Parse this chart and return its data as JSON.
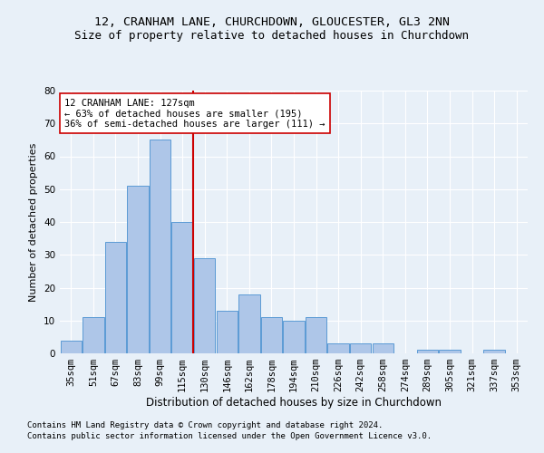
{
  "title1": "12, CRANHAM LANE, CHURCHDOWN, GLOUCESTER, GL3 2NN",
  "title2": "Size of property relative to detached houses in Churchdown",
  "xlabel": "Distribution of detached houses by size in Churchdown",
  "ylabel": "Number of detached properties",
  "bar_labels": [
    "35sqm",
    "51sqm",
    "67sqm",
    "83sqm",
    "99sqm",
    "115sqm",
    "130sqm",
    "146sqm",
    "162sqm",
    "178sqm",
    "194sqm",
    "210sqm",
    "226sqm",
    "242sqm",
    "258sqm",
    "274sqm",
    "289sqm",
    "305sqm",
    "321sqm",
    "337sqm",
    "353sqm"
  ],
  "bar_values": [
    4,
    11,
    34,
    51,
    65,
    40,
    29,
    13,
    18,
    11,
    10,
    11,
    3,
    3,
    3,
    0,
    1,
    1,
    0,
    1,
    0
  ],
  "bar_color": "#aec6e8",
  "bar_edge_color": "#5b9bd5",
  "reference_line_color": "#cc0000",
  "annotation_text": "12 CRANHAM LANE: 127sqm\n← 63% of detached houses are smaller (195)\n36% of semi-detached houses are larger (111) →",
  "annotation_box_color": "white",
  "annotation_box_edge": "#cc0000",
  "ylim": [
    0,
    80
  ],
  "yticks": [
    0,
    10,
    20,
    30,
    40,
    50,
    60,
    70,
    80
  ],
  "footnote1": "Contains HM Land Registry data © Crown copyright and database right 2024.",
  "footnote2": "Contains public sector information licensed under the Open Government Licence v3.0.",
  "background_color": "#e8f0f8",
  "plot_bg_color": "#e8f0f8",
  "grid_color": "white",
  "title1_fontsize": 9.5,
  "title2_fontsize": 9,
  "xlabel_fontsize": 8.5,
  "ylabel_fontsize": 8,
  "tick_fontsize": 7.5,
  "annotation_fontsize": 7.5,
  "footnote_fontsize": 6.5
}
